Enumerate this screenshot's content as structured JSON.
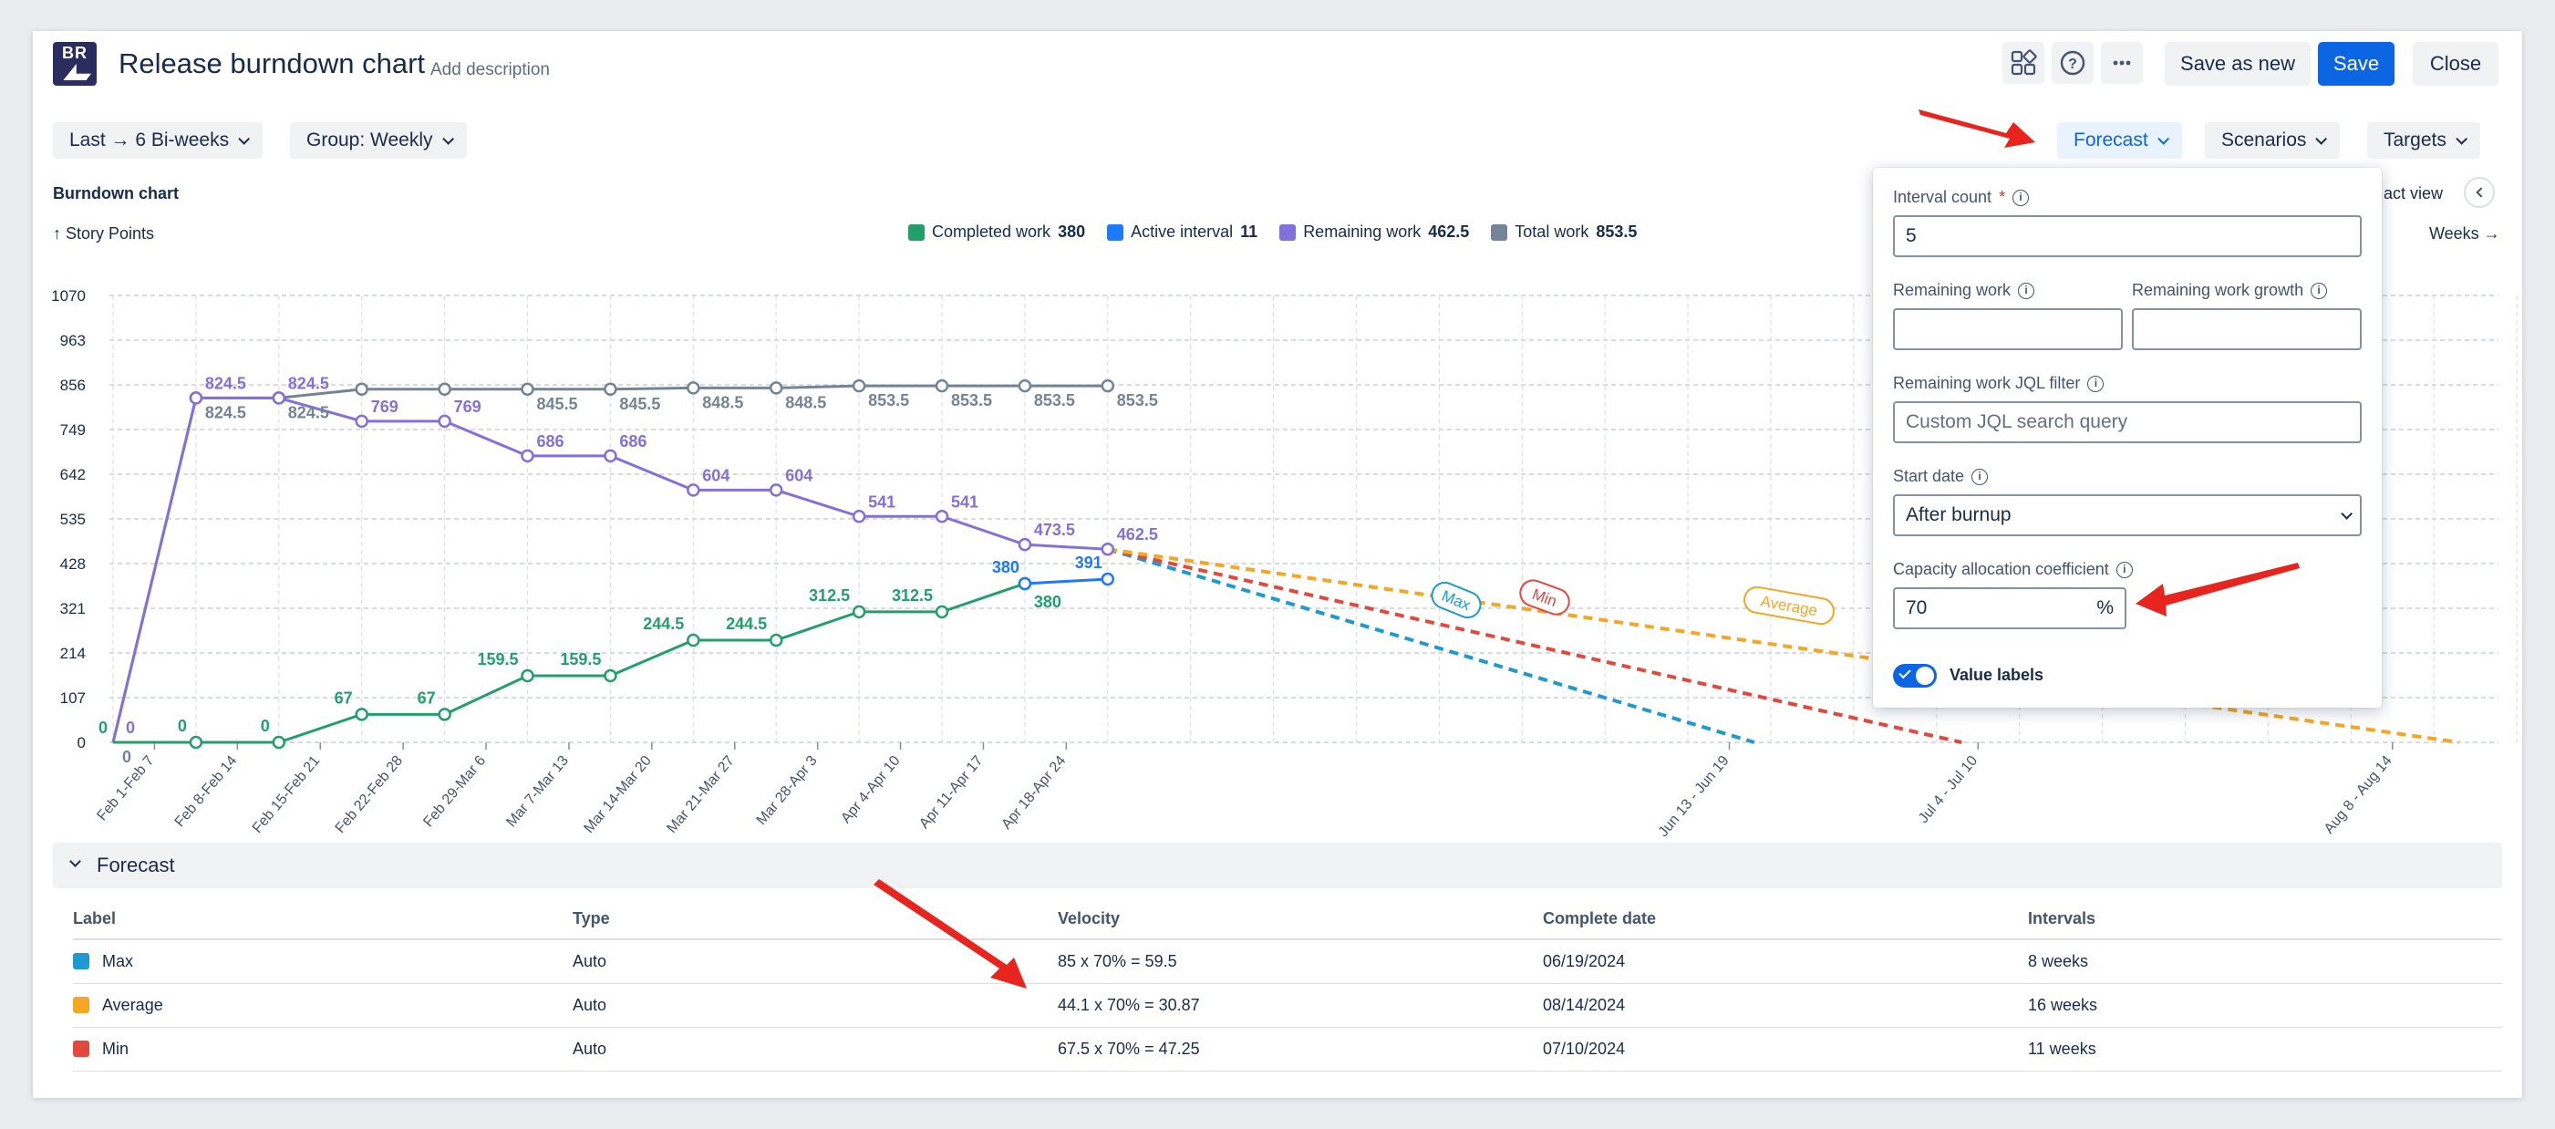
{
  "header": {
    "logo": "BR",
    "title": "Release burndown chart",
    "add_description": "Add description",
    "save_as_new": "Save as new",
    "save": "Save",
    "close": "Close",
    "icons": [
      "apps-icon",
      "help-icon",
      "more-icon"
    ]
  },
  "filters": {
    "range": "Last → 6 Bi-weeks",
    "group": "Group: Weekly",
    "forecast": "Forecast",
    "scenarios": "Scenarios",
    "targets": "Targets"
  },
  "chart_section": {
    "title": "Burndown chart",
    "y_unit": "↑ Story Points",
    "x_unit": "Weeks →",
    "compact_view": "act view"
  },
  "legend": [
    {
      "label": "Completed work",
      "value": "380",
      "color": "#22a06b"
    },
    {
      "label": "Active interval",
      "value": "11",
      "color": "#1d7afc"
    },
    {
      "label": "Remaining work",
      "value": "462.5",
      "color": "#8270db"
    },
    {
      "label": "Total work",
      "value": "853.5",
      "color": "#738496"
    }
  ],
  "chart_data": {
    "type": "line",
    "y_ticks": [
      "1070",
      "963",
      "856",
      "749",
      "642",
      "535",
      "428",
      "321",
      "214",
      "107",
      "0"
    ],
    "x_ticks": [
      "Feb 1-Feb 7",
      "Feb 8-Feb 14",
      "Feb 15-Feb 21",
      "Feb 22-Feb 28",
      "Feb 29-Mar 6",
      "Mar 7-Mar 13",
      "Mar 14-Mar 20",
      "Mar 21-Mar 27",
      "Mar 28-Apr 3",
      "Apr 4-Apr 10",
      "Apr 11-Apr 17",
      "Apr 18-Apr 24",
      "Jun 13 - Jun 19",
      "Jul 4 - Jul 10",
      "Aug 8 - Aug 14"
    ],
    "ylim": [
      0,
      1070
    ],
    "series": [
      {
        "name": "Total work",
        "color": "#738496",
        "points": [
          [
            0,
            0
          ],
          [
            1,
            824.5
          ],
          [
            2,
            824.5
          ],
          [
            3,
            845.5
          ],
          [
            4,
            845.5
          ],
          [
            5,
            845.5
          ],
          [
            6,
            845.5
          ],
          [
            7,
            848.5
          ],
          [
            8,
            848.5
          ],
          [
            9,
            853.5
          ],
          [
            10,
            853.5
          ],
          [
            11,
            853.5
          ],
          [
            12,
            853.5
          ]
        ],
        "labels": [
          "0",
          "824.5",
          "824.5",
          "",
          "",
          "845.5",
          "845.5",
          "848.5",
          "848.5",
          "853.5",
          "853.5",
          "853.5",
          "853.5"
        ]
      },
      {
        "name": "Remaining work",
        "color": "#8270db",
        "points": [
          [
            0,
            0
          ],
          [
            1,
            824.5
          ],
          [
            2,
            824.5
          ],
          [
            3,
            769
          ],
          [
            4,
            769
          ],
          [
            5,
            686
          ],
          [
            6,
            686
          ],
          [
            7,
            604
          ],
          [
            8,
            604
          ],
          [
            9,
            541
          ],
          [
            10,
            541
          ],
          [
            11,
            473.5
          ],
          [
            12,
            462.5
          ]
        ],
        "labels": [
          "0",
          "824.5",
          "824.5",
          "769",
          "769",
          "686",
          "686",
          "604",
          "604",
          "541",
          "541",
          "473.5",
          "462.5"
        ]
      },
      {
        "name": "Completed work",
        "color": "#22a06b",
        "points": [
          [
            0,
            0
          ],
          [
            1,
            0
          ],
          [
            2,
            0
          ],
          [
            3,
            67
          ],
          [
            4,
            67
          ],
          [
            5,
            159.5
          ],
          [
            6,
            159.5
          ],
          [
            7,
            244.5
          ],
          [
            8,
            244.5
          ],
          [
            9,
            312.5
          ],
          [
            10,
            312.5
          ],
          [
            11,
            380
          ]
        ],
        "labels": [
          "0",
          "0",
          "0",
          "67",
          "67",
          "159.5",
          "159.5",
          "244.5",
          "244.5",
          "312.5",
          "312.5",
          "380"
        ]
      },
      {
        "name": "Active interval",
        "color": "#1d7afc",
        "points": [
          [
            11,
            380
          ],
          [
            12,
            391
          ]
        ],
        "labels": [
          "380",
          "391"
        ]
      }
    ],
    "forecasts": [
      {
        "name": "Max",
        "color": "#1d9bd1",
        "from": [
          12,
          462.5
        ],
        "to": [
          19.8,
          0
        ]
      },
      {
        "name": "Min",
        "color": "#e2483d",
        "from": [
          12,
          462.5
        ],
        "to": [
          22.3,
          0
        ]
      },
      {
        "name": "Average",
        "color": "#f5a623",
        "from": [
          12,
          462.5
        ],
        "to": [
          28.3,
          0
        ]
      }
    ]
  },
  "forecast_table": {
    "section_title": "Forecast",
    "columns": [
      "Label",
      "Type",
      "Velocity",
      "Complete date",
      "Intervals"
    ],
    "rows": [
      {
        "label": "Max",
        "color": "#1d9bd1",
        "type": "Auto",
        "velocity": "85 x 70% = 59.5",
        "date": "06/19/2024",
        "intervals": "8 weeks"
      },
      {
        "label": "Average",
        "color": "#f5a623",
        "type": "Auto",
        "velocity": "44.1 x 70% = 30.87",
        "date": "08/14/2024",
        "intervals": "16 weeks"
      },
      {
        "label": "Min",
        "color": "#e2483d",
        "type": "Auto",
        "velocity": "67.5 x 70% = 47.25",
        "date": "07/10/2024",
        "intervals": "11 weeks"
      }
    ]
  },
  "forecast_panel": {
    "interval_count_label": "Interval count",
    "interval_count_value": "5",
    "remaining_work_label": "Remaining work",
    "remaining_work_value": "",
    "remaining_growth_label": "Remaining work growth",
    "remaining_growth_value": "",
    "jql_label": "Remaining work JQL filter",
    "jql_placeholder": "Custom JQL search query",
    "start_date_label": "Start date",
    "start_date_value": "After burnup",
    "capacity_label": "Capacity allocation coefficient",
    "capacity_value": "70",
    "capacity_unit": "%",
    "value_labels": "Value labels",
    "value_labels_on": true
  }
}
